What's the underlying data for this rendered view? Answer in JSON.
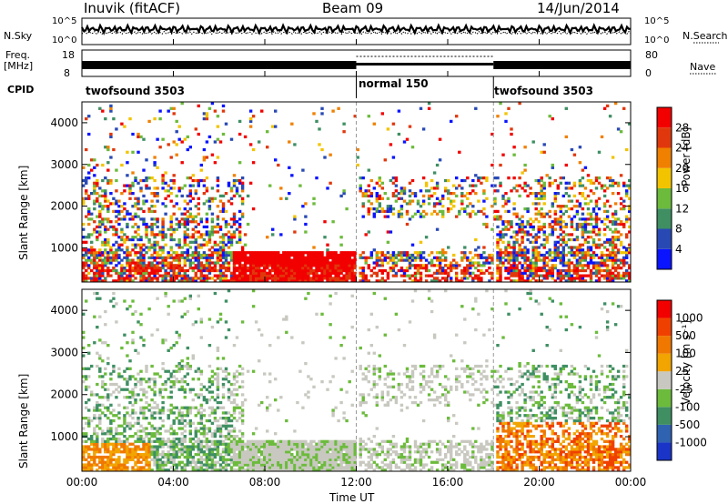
{
  "header": {
    "station": "Inuvik (fitACF)",
    "beam": "Beam 09",
    "date": "14/Jun/2014"
  },
  "top_panels": {
    "nsky_label": "N.Sky",
    "nsearch_label": "N.Search",
    "noise_ticks": [
      "10^5",
      "10^0"
    ],
    "freq_label": "Freq.",
    "freq_unit": "[MHz]",
    "freq_ticks": [
      "18",
      "8"
    ],
    "nave_label": "Nave",
    "nave_ticks": [
      "80",
      "0"
    ],
    "cpid_label": "CPID",
    "cpid_segments": [
      {
        "label": "twofsound 3503",
        "start_h": 0,
        "end_h": 12
      },
      {
        "label": "normal 150",
        "start_h": 12,
        "end_h": 18
      },
      {
        "label": "twofsound 3503",
        "start_h": 18,
        "end_h": 24
      }
    ]
  },
  "x_axis": {
    "label": "Time UT",
    "ticks": [
      "00:00",
      "04:00",
      "08:00",
      "12:00",
      "16:00",
      "20:00",
      "00:00"
    ]
  },
  "chart_data": [
    {
      "type": "heatmap",
      "quantity": "power",
      "ylabel": "Slant Range [km]",
      "ylim": [
        180,
        4500
      ],
      "yticks": [
        1000,
        2000,
        3000,
        4000
      ],
      "xlim_hours": [
        0,
        24
      ],
      "colorbar": {
        "label": "Power [dB]",
        "ticks": [
          "4",
          "8",
          "12",
          "16",
          "20",
          "24",
          "28"
        ],
        "colors": [
          "#0a14ff",
          "#2849b4",
          "#3f8f63",
          "#6cbb3c",
          "#f2c400",
          "#f08000",
          "#e0380c",
          "#f20000"
        ]
      }
    },
    {
      "type": "heatmap",
      "quantity": "velocity",
      "ylabel": "Slant Range [km]",
      "ylim": [
        180,
        4500
      ],
      "yticks": [
        1000,
        2000,
        3000,
        4000
      ],
      "xlim_hours": [
        0,
        24
      ],
      "colorbar": {
        "label": "Velocity [m s⁻¹]",
        "ticks": [
          "1000",
          "500",
          "100",
          "25",
          "-25",
          "-100",
          "-500",
          "-1000"
        ],
        "colors": [
          "#1a34c8",
          "#2f62b0",
          "#3f8f63",
          "#6cbb3c",
          "#c8c8c0",
          "#f2a400",
          "#f07800",
          "#f04000",
          "#f20000"
        ]
      }
    }
  ]
}
